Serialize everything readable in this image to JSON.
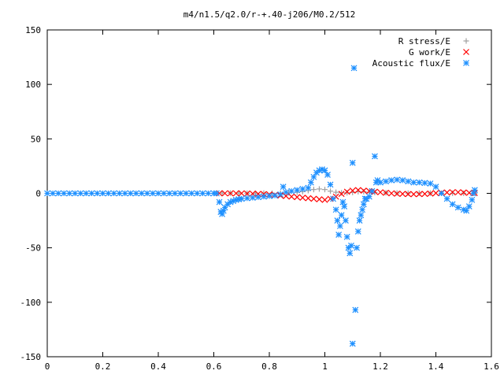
{
  "chart_data": {
    "type": "scatter",
    "title": "m4/n1.5/q2.0/r-+.40-j206/M0.2/512",
    "xlabel": "",
    "ylabel": "",
    "xlim": [
      0,
      1.6
    ],
    "ylim": [
      -150,
      150
    ],
    "xticks": [
      "0",
      "0.2",
      "0.4",
      "0.6",
      "0.8",
      "1",
      "1.2",
      "1.4",
      "1.6"
    ],
    "yticks": [
      "150",
      "100",
      "50",
      "0",
      "-50",
      "-100",
      "-150"
    ],
    "grid": false,
    "legend_position": "top-right",
    "series": [
      {
        "name": "R stress/E",
        "marker": "plus",
        "color": "#a0a0a0",
        "points": [
          [
            0.63,
            0.3
          ],
          [
            0.66,
            0.2
          ],
          [
            0.69,
            0.2
          ],
          [
            0.72,
            0.1
          ],
          [
            0.75,
            0.1
          ],
          [
            0.78,
            0.2
          ],
          [
            0.81,
            0.1
          ],
          [
            0.84,
            0.2
          ],
          [
            0.87,
            0.5
          ],
          [
            0.9,
            1
          ],
          [
            0.92,
            1.5
          ],
          [
            0.94,
            2.5
          ],
          [
            0.96,
            3.5
          ],
          [
            0.98,
            4
          ],
          [
            1.0,
            3.5
          ],
          [
            1.02,
            2
          ],
          [
            1.04,
            1
          ],
          [
            1.06,
            0.5
          ],
          [
            1.08,
            0.5
          ],
          [
            1.1,
            0.8
          ],
          [
            1.12,
            1.5
          ],
          [
            1.14,
            1.5
          ],
          [
            1.16,
            1
          ],
          [
            1.18,
            0.8
          ],
          [
            1.22,
            0.5
          ],
          [
            1.26,
            0.3
          ],
          [
            1.3,
            0.2
          ],
          [
            1.34,
            0.2
          ],
          [
            1.38,
            0.2
          ],
          [
            1.42,
            0.1
          ],
          [
            1.46,
            0.1
          ],
          [
            1.5,
            0.1
          ],
          [
            1.54,
            0.1
          ]
        ]
      },
      {
        "name": "G work/E",
        "marker": "cross",
        "color": "#ff0000",
        "points": [
          [
            0.62,
            0
          ],
          [
            0.64,
            0
          ],
          [
            0.66,
            0
          ],
          [
            0.68,
            0
          ],
          [
            0.7,
            0
          ],
          [
            0.72,
            -0.2
          ],
          [
            0.74,
            -0.3
          ],
          [
            0.76,
            -0.5
          ],
          [
            0.78,
            -0.7
          ],
          [
            0.8,
            -1
          ],
          [
            0.82,
            -1.5
          ],
          [
            0.84,
            -2
          ],
          [
            0.86,
            -2.5
          ],
          [
            0.88,
            -3
          ],
          [
            0.9,
            -3.5
          ],
          [
            0.92,
            -4
          ],
          [
            0.94,
            -4.5
          ],
          [
            0.96,
            -5
          ],
          [
            0.98,
            -5.5
          ],
          [
            1.0,
            -6
          ],
          [
            1.02,
            -5
          ],
          [
            1.04,
            -3
          ],
          [
            1.06,
            -0.5
          ],
          [
            1.08,
            1.5
          ],
          [
            1.1,
            2.5
          ],
          [
            1.12,
            3
          ],
          [
            1.14,
            2.5
          ],
          [
            1.16,
            2
          ],
          [
            1.18,
            1.5
          ],
          [
            1.2,
            1
          ],
          [
            1.22,
            0.5
          ],
          [
            1.24,
            0
          ],
          [
            1.26,
            -0.3
          ],
          [
            1.28,
            -0.5
          ],
          [
            1.3,
            -0.7
          ],
          [
            1.32,
            -0.8
          ],
          [
            1.34,
            -0.7
          ],
          [
            1.36,
            -0.5
          ],
          [
            1.38,
            -0.2
          ],
          [
            1.4,
            0.2
          ],
          [
            1.42,
            0.5
          ],
          [
            1.44,
            0.8
          ],
          [
            1.46,
            1
          ],
          [
            1.48,
            1
          ],
          [
            1.5,
            0.8
          ],
          [
            1.52,
            0.5
          ],
          [
            1.54,
            0.3
          ]
        ]
      },
      {
        "name": "Acoustic flux/E",
        "marker": "star",
        "color": "#1e90ff",
        "points": [
          [
            0.0,
            0
          ],
          [
            0.02,
            0
          ],
          [
            0.04,
            0
          ],
          [
            0.06,
            0
          ],
          [
            0.08,
            0
          ],
          [
            0.1,
            0
          ],
          [
            0.12,
            0
          ],
          [
            0.14,
            0
          ],
          [
            0.16,
            0
          ],
          [
            0.18,
            0
          ],
          [
            0.2,
            0
          ],
          [
            0.22,
            0
          ],
          [
            0.24,
            0
          ],
          [
            0.26,
            0
          ],
          [
            0.28,
            0
          ],
          [
            0.3,
            0
          ],
          [
            0.32,
            0
          ],
          [
            0.34,
            0
          ],
          [
            0.36,
            0
          ],
          [
            0.38,
            0
          ],
          [
            0.4,
            0
          ],
          [
            0.42,
            0
          ],
          [
            0.44,
            0
          ],
          [
            0.46,
            0
          ],
          [
            0.48,
            0
          ],
          [
            0.5,
            0
          ],
          [
            0.52,
            0
          ],
          [
            0.54,
            0
          ],
          [
            0.56,
            0
          ],
          [
            0.58,
            0
          ],
          [
            0.6,
            0
          ],
          [
            0.61,
            0
          ],
          [
            0.62,
            -8
          ],
          [
            0.625,
            -17
          ],
          [
            0.63,
            -19
          ],
          [
            0.635,
            -16
          ],
          [
            0.64,
            -13
          ],
          [
            0.65,
            -10
          ],
          [
            0.66,
            -8
          ],
          [
            0.67,
            -7
          ],
          [
            0.68,
            -6
          ],
          [
            0.69,
            -5.5
          ],
          [
            0.7,
            -5
          ],
          [
            0.72,
            -4.5
          ],
          [
            0.74,
            -4
          ],
          [
            0.76,
            -3.5
          ],
          [
            0.78,
            -3
          ],
          [
            0.8,
            -2.5
          ],
          [
            0.82,
            -2
          ],
          [
            0.84,
            -1
          ],
          [
            0.85,
            6
          ],
          [
            0.86,
            1
          ],
          [
            0.88,
            2
          ],
          [
            0.9,
            3
          ],
          [
            0.92,
            4
          ],
          [
            0.94,
            5
          ],
          [
            0.95,
            10
          ],
          [
            0.96,
            15
          ],
          [
            0.97,
            19
          ],
          [
            0.98,
            21
          ],
          [
            0.99,
            22
          ],
          [
            1.0,
            21
          ],
          [
            1.01,
            17
          ],
          [
            1.02,
            8
          ],
          [
            1.03,
            -5
          ],
          [
            1.04,
            -15
          ],
          [
            1.045,
            -25
          ],
          [
            1.05,
            -38
          ],
          [
            1.055,
            -30
          ],
          [
            1.06,
            -20
          ],
          [
            1.065,
            -8
          ],
          [
            1.07,
            -12
          ],
          [
            1.075,
            -25
          ],
          [
            1.08,
            -40
          ],
          [
            1.085,
            -50
          ],
          [
            1.09,
            -55
          ],
          [
            1.095,
            -48
          ],
          [
            1.1,
            28
          ],
          [
            1.105,
            115
          ],
          [
            1.11,
            -107
          ],
          [
            1.1,
            -138
          ],
          [
            1.115,
            -50
          ],
          [
            1.12,
            -35
          ],
          [
            1.125,
            -25
          ],
          [
            1.13,
            -20
          ],
          [
            1.135,
            -15
          ],
          [
            1.14,
            -10
          ],
          [
            1.145,
            -5
          ],
          [
            1.15,
            -5
          ],
          [
            1.16,
            -3
          ],
          [
            1.17,
            2
          ],
          [
            1.18,
            34
          ],
          [
            1.185,
            10
          ],
          [
            1.19,
            12
          ],
          [
            1.2,
            10
          ],
          [
            1.22,
            11
          ],
          [
            1.24,
            12
          ],
          [
            1.26,
            12.5
          ],
          [
            1.28,
            12
          ],
          [
            1.3,
            11
          ],
          [
            1.32,
            10
          ],
          [
            1.34,
            10
          ],
          [
            1.36,
            9.5
          ],
          [
            1.38,
            9
          ],
          [
            1.4,
            6
          ],
          [
            1.42,
            0
          ],
          [
            1.44,
            -5
          ],
          [
            1.46,
            -10
          ],
          [
            1.48,
            -13
          ],
          [
            1.5,
            -15
          ],
          [
            1.51,
            -16
          ],
          [
            1.52,
            -12
          ],
          [
            1.53,
            -6
          ],
          [
            1.535,
            0
          ],
          [
            1.54,
            3
          ]
        ]
      }
    ]
  }
}
